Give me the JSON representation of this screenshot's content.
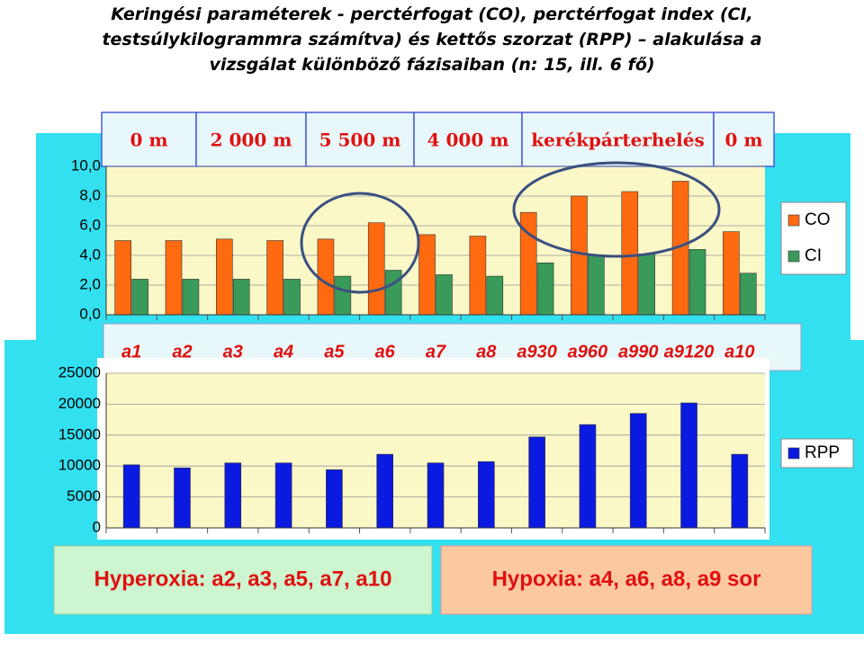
{
  "title": "Keringési paraméterek - perctérfogat (CO),  perctérfogat index (CI, testsúlykilogrammra számítva) és kettős szorzat (RPP) – alakulása a vizsgálat különböző fázisaiban (n: 15, ill. 6 fő)",
  "phases": [
    "0 m",
    "2 000 m",
    "5 500 m",
    "4 000 m",
    "kerékpárterhelés",
    "0 m"
  ],
  "chart_data": [
    {
      "type": "bar",
      "categories": [
        "a1",
        "a2",
        "a3",
        "a4",
        "a5",
        "a6",
        "a7",
        "a8",
        "a930",
        "a960",
        "a990",
        "a9120",
        "a10"
      ],
      "series": [
        {
          "name": "CO",
          "color": "#ff6a10",
          "values": [
            5.0,
            5.0,
            5.1,
            5.0,
            5.1,
            6.2,
            5.4,
            5.3,
            6.9,
            8.0,
            8.3,
            9.0,
            5.6
          ]
        },
        {
          "name": "CI",
          "color": "#3a9a5a",
          "values": [
            2.4,
            2.4,
            2.4,
            2.4,
            2.6,
            3.0,
            2.7,
            2.6,
            3.5,
            4.0,
            4.1,
            4.4,
            2.8
          ]
        }
      ],
      "ylim": [
        0,
        10
      ],
      "yticks": [
        {
          "value": 0,
          "label": "0,0"
        },
        {
          "value": 2,
          "label": "2,0"
        },
        {
          "value": 4,
          "label": "4,0"
        },
        {
          "value": 6,
          "label": "6,0"
        },
        {
          "value": 8,
          "label": "8,0"
        },
        {
          "value": 10,
          "label": "10,0"
        }
      ],
      "grid": true,
      "legend": "right"
    },
    {
      "type": "bar",
      "series": [
        {
          "name": "RPP",
          "color": "#0a1ae0",
          "values": [
            10200,
            9700,
            10500,
            10500,
            9400,
            11900,
            10500,
            10700,
            14700,
            16700,
            18500,
            20200,
            11900
          ]
        }
      ],
      "ylim": [
        0,
        25000
      ],
      "yticks": [
        0,
        5000,
        10000,
        15000,
        20000,
        25000
      ],
      "grid": true,
      "legend": "right"
    }
  ],
  "notes": [
    "Hyperoxia:   a2,  a3, a5, a7, a10",
    "Hypoxia:   a4,  a6, a8, a9 sor"
  ]
}
